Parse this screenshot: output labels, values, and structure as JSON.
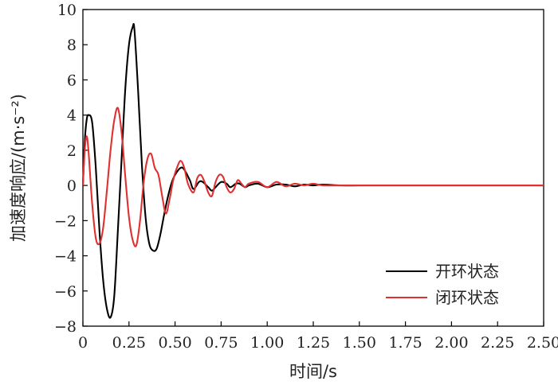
{
  "chart_data": {
    "type": "line",
    "title": "",
    "xlabel": "时间/s",
    "ylabel": "加速度响应/(m·s⁻²)",
    "xlim": [
      0,
      2.5
    ],
    "ylim": [
      -8,
      10
    ],
    "xticks": [
      0,
      0.25,
      0.5,
      0.75,
      1.0,
      1.25,
      1.5,
      1.75,
      2.0,
      2.25,
      2.5
    ],
    "xtick_labels": [
      "0",
      "0.25",
      "0.50",
      "0.75",
      "1.00",
      "1.25",
      "1.50",
      "1.75",
      "2.00",
      "2.25",
      "2.50"
    ],
    "yticks": [
      -8,
      -6,
      -4,
      -2,
      0,
      2,
      4,
      6,
      8,
      10
    ],
    "ytick_labels": [
      "−8",
      "−6",
      "−4",
      "−2",
      "0",
      "2",
      "4",
      "6",
      "8",
      "10"
    ],
    "grid": false,
    "legend_position": "bottom-right",
    "series": [
      {
        "name": "开环状态",
        "color": "#000000",
        "x": [
          0,
          0.01,
          0.02,
          0.03,
          0.05,
          0.07,
          0.09,
          0.11,
          0.13,
          0.15,
          0.17,
          0.19,
          0.21,
          0.23,
          0.25,
          0.27,
          0.28,
          0.3,
          0.32,
          0.34,
          0.36,
          0.38,
          0.4,
          0.42,
          0.44,
          0.46,
          0.48,
          0.5,
          0.53,
          0.55,
          0.58,
          0.6,
          0.63,
          0.65,
          0.68,
          0.7,
          0.72,
          0.75,
          0.78,
          0.8,
          0.83,
          0.85,
          0.88,
          0.9,
          0.95,
          1.0,
          1.05,
          1.1,
          1.15,
          1.2,
          1.25,
          1.3,
          1.4,
          1.5,
          1.75,
          2.0,
          2.25,
          2.5
        ],
        "y": [
          0,
          2.5,
          3.7,
          4.0,
          3.6,
          1.0,
          -2.6,
          -5.4,
          -7.0,
          -7.5,
          -6.3,
          -2.5,
          1.5,
          5.5,
          8.0,
          9.0,
          8.8,
          5.3,
          1.2,
          -1.8,
          -3.3,
          -3.7,
          -3.6,
          -2.8,
          -1.7,
          -0.7,
          0.1,
          0.6,
          1.0,
          0.9,
          0.3,
          -0.2,
          0.2,
          0.2,
          -0.1,
          -0.3,
          -0.1,
          0.2,
          0.1,
          -0.1,
          0.1,
          0.1,
          -0.1,
          0.0,
          0.1,
          -0.1,
          0.05,
          0.05,
          -0.05,
          0.05,
          0.0,
          0.05,
          0.0,
          0.0,
          0.0,
          0.0,
          0.0,
          0.0
        ]
      },
      {
        "name": "闭环状态",
        "color": "#e03030",
        "x": [
          0,
          0.01,
          0.02,
          0.03,
          0.05,
          0.07,
          0.09,
          0.11,
          0.13,
          0.15,
          0.17,
          0.19,
          0.21,
          0.23,
          0.25,
          0.27,
          0.29,
          0.31,
          0.33,
          0.35,
          0.37,
          0.39,
          0.41,
          0.43,
          0.45,
          0.47,
          0.49,
          0.51,
          0.53,
          0.55,
          0.57,
          0.6,
          0.62,
          0.64,
          0.66,
          0.68,
          0.7,
          0.72,
          0.74,
          0.76,
          0.78,
          0.8,
          0.82,
          0.84,
          0.86,
          0.88,
          0.9,
          0.95,
          1.0,
          1.05,
          1.1,
          1.15,
          1.2,
          1.25,
          1.3,
          1.4,
          1.5,
          1.75,
          2.0,
          2.25,
          2.5
        ],
        "y": [
          0,
          2.0,
          2.8,
          2.0,
          -1.0,
          -3.0,
          -3.3,
          -2.4,
          -0.3,
          2.0,
          3.7,
          4.4,
          3.0,
          0.5,
          -1.8,
          -3.1,
          -3.4,
          -2.0,
          0.2,
          1.5,
          1.8,
          1.0,
          0.6,
          -0.6,
          -1.6,
          -0.8,
          0.3,
          1.0,
          1.4,
          1.0,
          0.1,
          -0.4,
          0.4,
          0.6,
          0.2,
          -0.4,
          -0.6,
          0.2,
          0.6,
          0.5,
          -0.1,
          -0.4,
          -0.2,
          0.3,
          0.1,
          -0.1,
          0.1,
          0.2,
          -0.1,
          0.2,
          -0.05,
          0.1,
          0.0,
          0.1,
          0.0,
          0.0,
          0.0,
          0.0,
          0.0,
          0.0,
          0.0
        ]
      }
    ]
  }
}
